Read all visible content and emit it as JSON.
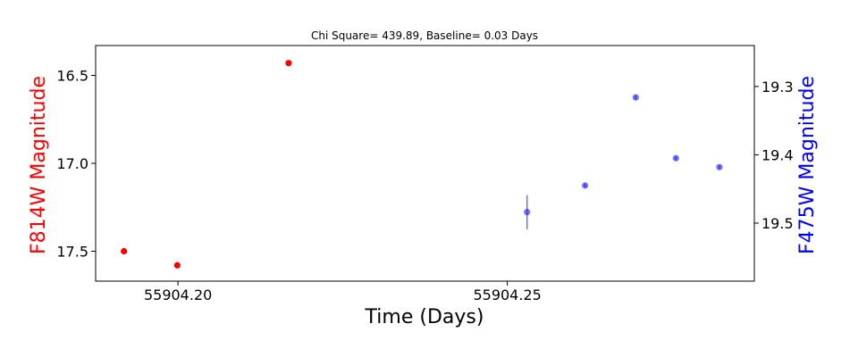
{
  "chart_data": {
    "type": "scatter",
    "title": "Chi Square= 439.89, Baseline= 0.03 Days",
    "xlabel": "Time (Days)",
    "xlim": [
      55904.1875,
      55904.2875
    ],
    "xticks": [
      55904.2,
      55904.25
    ],
    "xtick_labels": [
      "55904.20",
      "55904.25"
    ],
    "grid": false,
    "left_axis": {
      "label": "F814W Magnitude",
      "color": "#ff0000",
      "ylim": [
        16.33,
        17.67
      ],
      "inverted": true,
      "ticks": [
        16.5,
        17.0,
        17.5
      ],
      "tick_labels": [
        "16.5",
        "17.0",
        "17.5"
      ]
    },
    "right_axis": {
      "label": "F475W Magnitude",
      "color": "#0000ff",
      "ylim": [
        19.24,
        19.585
      ],
      "inverted": true,
      "ticks": [
        19.3,
        19.4,
        19.5
      ],
      "tick_labels": [
        "19.3",
        "19.4",
        "19.5"
      ]
    },
    "series": [
      {
        "axis": "left",
        "color": "#ff0000",
        "opacity": 1.0,
        "points": [
          {
            "x": 55904.1918,
            "y": 17.5
          },
          {
            "x": 55904.1999,
            "y": 17.58
          },
          {
            "x": 55904.2168,
            "y": 16.43
          }
        ]
      },
      {
        "axis": "right",
        "color": "#0000ff",
        "opacity": 0.55,
        "points": [
          {
            "x": 55904.253,
            "y": 19.484,
            "yerr": 0.025
          },
          {
            "x": 55904.2618,
            "y": 19.445,
            "yerr": 0.003
          },
          {
            "x": 55904.2695,
            "y": 19.316,
            "yerr": 0.003
          },
          {
            "x": 55904.2756,
            "y": 19.405,
            "yerr": 0.003
          },
          {
            "x": 55904.2822,
            "y": 19.418,
            "yerr": 0.003
          }
        ]
      }
    ]
  }
}
